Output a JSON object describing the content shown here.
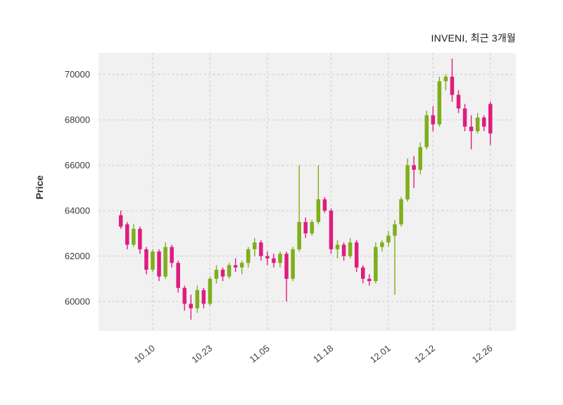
{
  "title": "INVENI, 최근 3개월",
  "ylabel": "Price",
  "chart_data": {
    "type": "candlestick",
    "title": "INVENI, 최근 3개월",
    "xlabel": "",
    "ylabel": "Price",
    "legend": "none",
    "grid": true,
    "grid_style": "dashed",
    "grid_color": "#c9c9c9",
    "plot_background": "#f1f1f1",
    "background": "#ffffff",
    "up_color": "#7fae1b",
    "down_color": "#de1d7e",
    "ylim": [
      58700,
      70950
    ],
    "yticks": [
      60000,
      62000,
      64000,
      66000,
      68000,
      70000
    ],
    "xticks": [
      {
        "index": 5,
        "label": "10.10"
      },
      {
        "index": 14,
        "label": "10.23"
      },
      {
        "index": 23,
        "label": "11.05"
      },
      {
        "index": 33,
        "label": "11.18"
      },
      {
        "index": 42,
        "label": "12.01"
      },
      {
        "index": 49,
        "label": "12.12"
      },
      {
        "index": 58,
        "label": "12.26"
      }
    ],
    "ohlc": [
      {
        "date": "10.02",
        "open": 63800,
        "high": 64000,
        "low": 63200,
        "close": 63300
      },
      {
        "date": "10.04",
        "open": 63400,
        "high": 63500,
        "low": 62300,
        "close": 62500
      },
      {
        "date": "10.05",
        "open": 62500,
        "high": 63400,
        "low": 62400,
        "close": 63200
      },
      {
        "date": "10.06",
        "open": 63200,
        "high": 63300,
        "low": 62100,
        "close": 62300
      },
      {
        "date": "10.10",
        "open": 62300,
        "high": 62400,
        "low": 61200,
        "close": 61400
      },
      {
        "date": "10.11",
        "open": 61400,
        "high": 62300,
        "low": 61300,
        "close": 62200
      },
      {
        "date": "10.12",
        "open": 62200,
        "high": 62300,
        "low": 60900,
        "close": 61100
      },
      {
        "date": "10.13",
        "open": 61100,
        "high": 62600,
        "low": 61000,
        "close": 62400
      },
      {
        "date": "10.16",
        "open": 62400,
        "high": 62500,
        "low": 61500,
        "close": 61700
      },
      {
        "date": "10.17",
        "open": 61700,
        "high": 61800,
        "low": 60400,
        "close": 60600
      },
      {
        "date": "10.18",
        "open": 60600,
        "high": 60700,
        "low": 59600,
        "close": 59900
      },
      {
        "date": "10.19",
        "open": 59900,
        "high": 60300,
        "low": 59200,
        "close": 59700
      },
      {
        "date": "10.20",
        "open": 59700,
        "high": 60700,
        "low": 59500,
        "close": 60500
      },
      {
        "date": "10.23",
        "open": 60500,
        "high": 60600,
        "low": 59700,
        "close": 59900
      },
      {
        "date": "10.24",
        "open": 59900,
        "high": 61100,
        "low": 59800,
        "close": 61000
      },
      {
        "date": "10.25",
        "open": 61000,
        "high": 61600,
        "low": 60800,
        "close": 61400
      },
      {
        "date": "10.26",
        "open": 61400,
        "high": 61500,
        "low": 60900,
        "close": 61100
      },
      {
        "date": "10.27",
        "open": 61100,
        "high": 61700,
        "low": 61000,
        "close": 61600
      },
      {
        "date": "10.30",
        "open": 61600,
        "high": 61900,
        "low": 61300,
        "close": 61500
      },
      {
        "date": "10.31",
        "open": 61500,
        "high": 61800,
        "low": 61200,
        "close": 61700
      },
      {
        "date": "11.01",
        "open": 61700,
        "high": 62400,
        "low": 61500,
        "close": 62300
      },
      {
        "date": "11.02",
        "open": 62300,
        "high": 62800,
        "low": 62000,
        "close": 62600
      },
      {
        "date": "11.03",
        "open": 62600,
        "high": 62700,
        "low": 61800,
        "close": 62000
      },
      {
        "date": "11.06",
        "open": 62000,
        "high": 62200,
        "low": 61600,
        "close": 61900
      },
      {
        "date": "11.07",
        "open": 61900,
        "high": 62100,
        "low": 61500,
        "close": 61700
      },
      {
        "date": "11.08",
        "open": 61700,
        "high": 62200,
        "low": 61500,
        "close": 62100
      },
      {
        "date": "11.09",
        "open": 62100,
        "high": 62200,
        "low": 60000,
        "close": 61000
      },
      {
        "date": "11.10",
        "open": 61000,
        "high": 62400,
        "low": 60900,
        "close": 62300
      },
      {
        "date": "11.13",
        "open": 62300,
        "high": 66000,
        "low": 62200,
        "close": 63500
      },
      {
        "date": "11.14",
        "open": 63500,
        "high": 63700,
        "low": 62800,
        "close": 63000
      },
      {
        "date": "11.15",
        "open": 63000,
        "high": 63600,
        "low": 62900,
        "close": 63500
      },
      {
        "date": "11.16",
        "open": 63500,
        "high": 66000,
        "low": 63400,
        "close": 64500
      },
      {
        "date": "11.17",
        "open": 64500,
        "high": 64600,
        "low": 63900,
        "close": 64000
      },
      {
        "date": "11.20",
        "open": 64000,
        "high": 64100,
        "low": 62100,
        "close": 62300
      },
      {
        "date": "11.21",
        "open": 62300,
        "high": 62700,
        "low": 61900,
        "close": 62500
      },
      {
        "date": "11.22",
        "open": 62500,
        "high": 62600,
        "low": 61800,
        "close": 62000
      },
      {
        "date": "11.23",
        "open": 62000,
        "high": 62800,
        "low": 61900,
        "close": 62600
      },
      {
        "date": "11.24",
        "open": 62600,
        "high": 62700,
        "low": 61300,
        "close": 61500
      },
      {
        "date": "11.27",
        "open": 61500,
        "high": 61600,
        "low": 60800,
        "close": 61000
      },
      {
        "date": "11.28",
        "open": 61000,
        "high": 61200,
        "low": 60700,
        "close": 60900
      },
      {
        "date": "11.29",
        "open": 60900,
        "high": 62600,
        "low": 60800,
        "close": 62400
      },
      {
        "date": "11.30",
        "open": 62400,
        "high": 62700,
        "low": 62200,
        "close": 62600
      },
      {
        "date": "12.01",
        "open": 62600,
        "high": 63100,
        "low": 62400,
        "close": 62900
      },
      {
        "date": "12.04",
        "open": 62900,
        "high": 63600,
        "low": 60300,
        "close": 63400
      },
      {
        "date": "12.05",
        "open": 63400,
        "high": 64600,
        "low": 63300,
        "close": 64500
      },
      {
        "date": "12.06",
        "open": 64500,
        "high": 66300,
        "low": 64400,
        "close": 66000
      },
      {
        "date": "12.07",
        "open": 66000,
        "high": 66400,
        "low": 65000,
        "close": 65800
      },
      {
        "date": "12.08",
        "open": 65800,
        "high": 67000,
        "low": 65600,
        "close": 66800
      },
      {
        "date": "12.11",
        "open": 66800,
        "high": 68400,
        "low": 66700,
        "close": 68200
      },
      {
        "date": "12.12",
        "open": 68200,
        "high": 68600,
        "low": 67500,
        "close": 67800
      },
      {
        "date": "12.13",
        "open": 67800,
        "high": 69900,
        "low": 67700,
        "close": 69700
      },
      {
        "date": "12.14",
        "open": 69700,
        "high": 70000,
        "low": 69300,
        "close": 69900
      },
      {
        "date": "12.15",
        "open": 69900,
        "high": 70700,
        "low": 68800,
        "close": 69100
      },
      {
        "date": "12.18",
        "open": 69100,
        "high": 69300,
        "low": 68300,
        "close": 68500
      },
      {
        "date": "12.19",
        "open": 68500,
        "high": 68700,
        "low": 67500,
        "close": 67700
      },
      {
        "date": "12.20",
        "open": 67700,
        "high": 68200,
        "low": 66700,
        "close": 67500
      },
      {
        "date": "12.21",
        "open": 67500,
        "high": 68300,
        "low": 67400,
        "close": 68100
      },
      {
        "date": "12.22",
        "open": 68100,
        "high": 68200,
        "low": 67500,
        "close": 67700
      },
      {
        "date": "12.26",
        "open": 68700,
        "high": 68800,
        "low": 66900,
        "close": 67400
      }
    ]
  }
}
